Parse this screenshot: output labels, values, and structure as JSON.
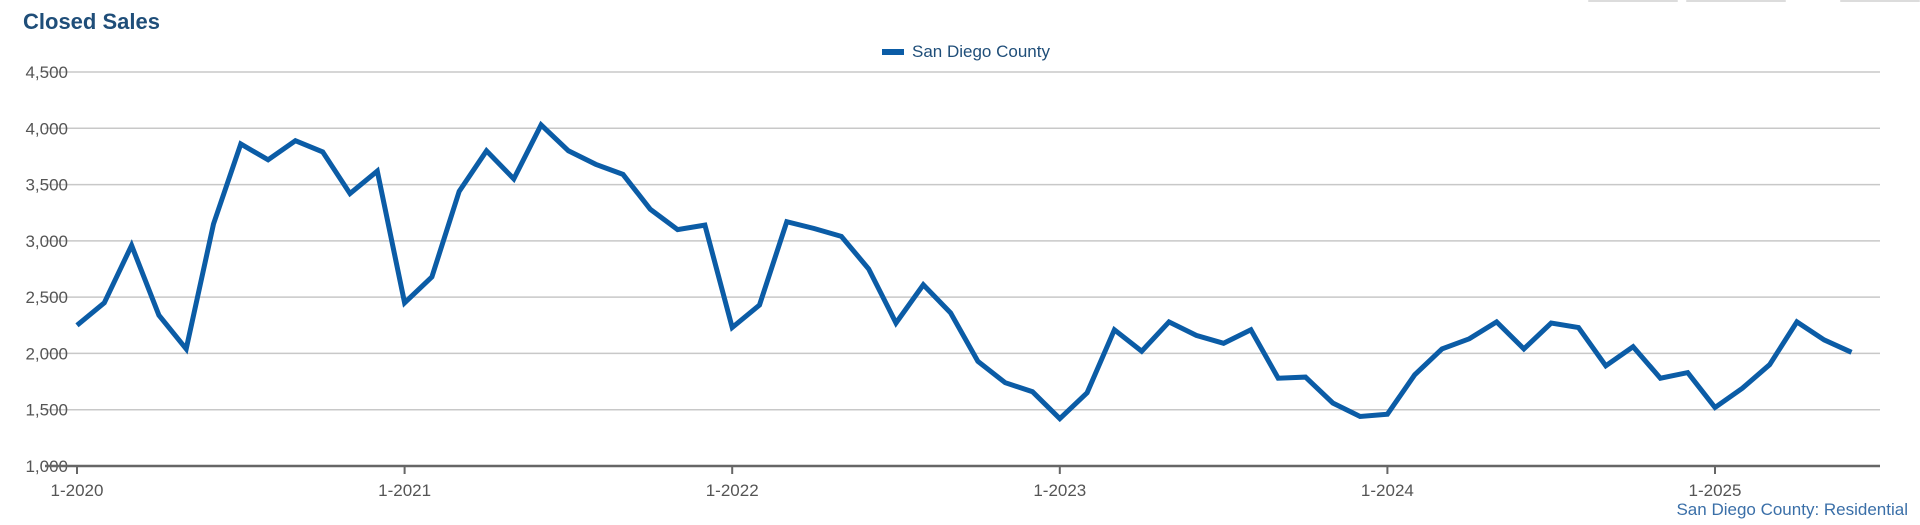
{
  "title": "Closed Sales",
  "source": "San Diego County: Residential",
  "colors": {
    "line": "#0b5ca6",
    "title": "#1f4e79",
    "grid": "#c8c8c8",
    "axis": "#666666"
  },
  "chart_data": {
    "type": "line",
    "title": "Closed Sales",
    "legend_position": "top-center",
    "grid": true,
    "ylim": [
      1000,
      4500
    ],
    "y_ticks": [
      {
        "value": 1000,
        "label": "1,000"
      },
      {
        "value": 1500,
        "label": "1,500"
      },
      {
        "value": 2000,
        "label": "2,000"
      },
      {
        "value": 2500,
        "label": "2,500"
      },
      {
        "value": 3000,
        "label": "3,000"
      },
      {
        "value": 3500,
        "label": "3,500"
      },
      {
        "value": 4000,
        "label": "4,000"
      },
      {
        "value": 4500,
        "label": "4,500"
      }
    ],
    "x_ticks": [
      {
        "index": 0,
        "label": "1-2020"
      },
      {
        "index": 12,
        "label": "1-2021"
      },
      {
        "index": 24,
        "label": "1-2022"
      },
      {
        "index": 36,
        "label": "1-2023"
      },
      {
        "index": 48,
        "label": "1-2024"
      },
      {
        "index": 60,
        "label": "1-2025"
      }
    ],
    "x_count": 66,
    "series": [
      {
        "name": "San Diego County",
        "values": [
          2250,
          2450,
          2960,
          2340,
          2040,
          3150,
          3860,
          3720,
          3890,
          3790,
          3420,
          3620,
          2450,
          2680,
          3440,
          3800,
          3550,
          4030,
          3800,
          3680,
          3590,
          3280,
          3100,
          3140,
          2230,
          2430,
          3170,
          3110,
          3040,
          2750,
          2270,
          2610,
          2360,
          1930,
          1740,
          1660,
          1420,
          1650,
          2210,
          2020,
          2280,
          2160,
          2090,
          2210,
          1780,
          1790,
          1560,
          1440,
          1460,
          1810,
          2040,
          2130,
          2280,
          2040,
          2270,
          2230,
          1890,
          2060,
          1780,
          1830,
          1520,
          1690,
          1900,
          2280,
          2120,
          2010
        ]
      }
    ]
  }
}
